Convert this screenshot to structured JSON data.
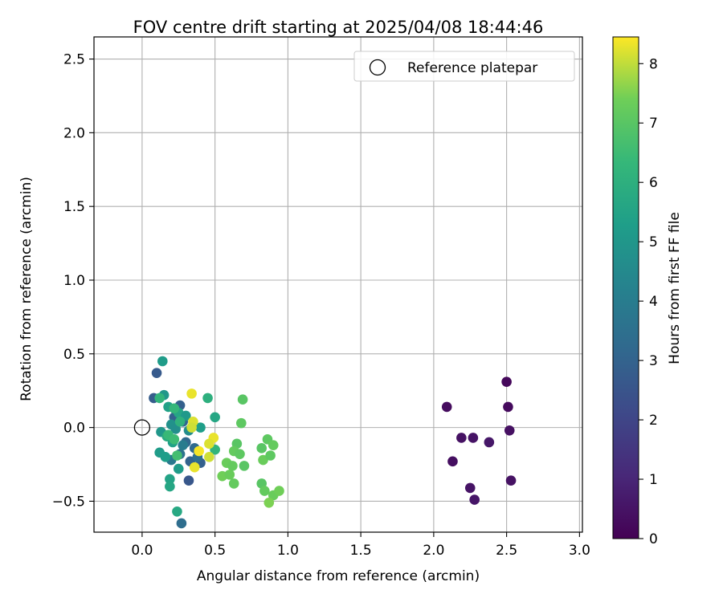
{
  "chart_data": {
    "type": "scatter",
    "title": "FOV centre drift starting at 2025/04/08 18:44:46",
    "xlabel": "Angular distance from reference (arcmin)",
    "ylabel": "Rotation from reference (arcmin)",
    "xlim": [
      -0.33,
      3.02
    ],
    "ylim": [
      -0.71,
      2.65
    ],
    "xticks": [
      {
        "value": 0.0,
        "label": "0.0"
      },
      {
        "value": 0.5,
        "label": "0.5"
      },
      {
        "value": 1.0,
        "label": "1.0"
      },
      {
        "value": 1.5,
        "label": "1.5"
      },
      {
        "value": 2.0,
        "label": "2.0"
      },
      {
        "value": 2.5,
        "label": "2.5"
      },
      {
        "value": 3.0,
        "label": "3.0"
      }
    ],
    "yticks": [
      {
        "value": -0.5,
        "label": "−0.5"
      },
      {
        "value": 0.0,
        "label": "0.0"
      },
      {
        "value": 0.5,
        "label": "0.5"
      },
      {
        "value": 1.0,
        "label": "1.0"
      },
      {
        "value": 1.5,
        "label": "1.5"
      },
      {
        "value": 2.0,
        "label": "2.0"
      },
      {
        "value": 2.5,
        "label": "2.5"
      }
    ],
    "grid": true,
    "legend": {
      "placement": "top-right",
      "entries": [
        "Reference platepar"
      ]
    },
    "reference_point": {
      "x": 0.0,
      "y": 0.0
    },
    "colorbar": {
      "label": "Hours from first FF file",
      "range": [
        0,
        8.45
      ],
      "colormap": "viridis",
      "ticks": [
        {
          "value": 0,
          "label": "0"
        },
        {
          "value": 1,
          "label": "1"
        },
        {
          "value": 2,
          "label": "2"
        },
        {
          "value": 3,
          "label": "3"
        },
        {
          "value": 4,
          "label": "4"
        },
        {
          "value": 5,
          "label": "5"
        },
        {
          "value": 6,
          "label": "6"
        },
        {
          "value": 7,
          "label": "7"
        },
        {
          "value": 8,
          "label": "8"
        }
      ]
    },
    "points": [
      {
        "x": 2.09,
        "y": 0.14,
        "t": 0.3
      },
      {
        "x": 2.13,
        "y": -0.23,
        "t": 0.35
      },
      {
        "x": 2.19,
        "y": -0.07,
        "t": 0.45
      },
      {
        "x": 2.25,
        "y": -0.41,
        "t": 0.5
      },
      {
        "x": 2.27,
        "y": -0.07,
        "t": 0.5
      },
      {
        "x": 2.28,
        "y": -0.49,
        "t": 0.55
      },
      {
        "x": 2.38,
        "y": -0.1,
        "t": 0.6
      },
      {
        "x": 2.5,
        "y": 0.31,
        "t": 0.2
      },
      {
        "x": 2.51,
        "y": 0.14,
        "t": 0.25
      },
      {
        "x": 2.52,
        "y": -0.02,
        "t": 0.4
      },
      {
        "x": 2.53,
        "y": -0.36,
        "t": 0.45
      },
      {
        "x": 0.1,
        "y": 0.37,
        "t": 2.7
      },
      {
        "x": 0.08,
        "y": 0.2,
        "t": 2.8
      },
      {
        "x": 0.26,
        "y": 0.15,
        "t": 2.9
      },
      {
        "x": 0.22,
        "y": 0.07,
        "t": 3.0
      },
      {
        "x": 0.28,
        "y": 0.04,
        "t": 3.1
      },
      {
        "x": 0.3,
        "y": -0.1,
        "t": 3.2
      },
      {
        "x": 0.33,
        "y": -0.23,
        "t": 3.0
      },
      {
        "x": 0.36,
        "y": -0.14,
        "t": 3.3
      },
      {
        "x": 0.4,
        "y": -0.24,
        "t": 2.9
      },
      {
        "x": 0.32,
        "y": -0.36,
        "t": 2.6
      },
      {
        "x": 0.27,
        "y": -0.65,
        "t": 3.4
      },
      {
        "x": 0.26,
        "y": -0.18,
        "t": 3.6
      },
      {
        "x": 0.2,
        "y": -0.22,
        "t": 3.8
      },
      {
        "x": 0.28,
        "y": -0.12,
        "t": 4.0
      },
      {
        "x": 0.38,
        "y": -0.2,
        "t": 3.5
      },
      {
        "x": 0.14,
        "y": 0.45,
        "t": 5.2
      },
      {
        "x": 0.15,
        "y": 0.22,
        "t": 5.0
      },
      {
        "x": 0.18,
        "y": 0.14,
        "t": 5.4
      },
      {
        "x": 0.25,
        "y": 0.1,
        "t": 5.6
      },
      {
        "x": 0.3,
        "y": 0.08,
        "t": 5.1
      },
      {
        "x": 0.2,
        "y": 0.02,
        "t": 4.8
      },
      {
        "x": 0.13,
        "y": -0.03,
        "t": 5.0
      },
      {
        "x": 0.12,
        "y": -0.17,
        "t": 5.2
      },
      {
        "x": 0.16,
        "y": -0.2,
        "t": 5.3
      },
      {
        "x": 0.21,
        "y": -0.1,
        "t": 5.4
      },
      {
        "x": 0.19,
        "y": -0.35,
        "t": 5.5
      },
      {
        "x": 0.19,
        "y": -0.4,
        "t": 5.6
      },
      {
        "x": 0.24,
        "y": -0.57,
        "t": 5.7
      },
      {
        "x": 0.25,
        "y": -0.28,
        "t": 5.2
      },
      {
        "x": 0.17,
        "y": -0.06,
        "t": 5.8
      },
      {
        "x": 0.23,
        "y": -0.01,
        "t": 4.7
      },
      {
        "x": 0.32,
        "y": -0.02,
        "t": 4.6
      },
      {
        "x": 0.4,
        "y": 0.0,
        "t": 5.3
      },
      {
        "x": 0.5,
        "y": 0.07,
        "t": 5.6
      },
      {
        "x": 0.45,
        "y": 0.2,
        "t": 6.0
      },
      {
        "x": 0.12,
        "y": 0.2,
        "t": 6.2
      },
      {
        "x": 0.22,
        "y": 0.13,
        "t": 6.3
      },
      {
        "x": 0.26,
        "y": 0.04,
        "t": 6.1
      },
      {
        "x": 0.18,
        "y": -0.05,
        "t": 6.4
      },
      {
        "x": 0.22,
        "y": -0.08,
        "t": 6.5
      },
      {
        "x": 0.5,
        "y": -0.15,
        "t": 6.2
      },
      {
        "x": 0.24,
        "y": -0.19,
        "t": 6.6
      },
      {
        "x": 0.69,
        "y": 0.19,
        "t": 7.0
      },
      {
        "x": 0.68,
        "y": 0.03,
        "t": 7.1
      },
      {
        "x": 0.65,
        "y": -0.11,
        "t": 7.0
      },
      {
        "x": 0.63,
        "y": -0.16,
        "t": 7.2
      },
      {
        "x": 0.67,
        "y": -0.18,
        "t": 7.1
      },
      {
        "x": 0.58,
        "y": -0.24,
        "t": 7.3
      },
      {
        "x": 0.62,
        "y": -0.26,
        "t": 7.2
      },
      {
        "x": 0.7,
        "y": -0.26,
        "t": 7.0
      },
      {
        "x": 0.55,
        "y": -0.33,
        "t": 7.4
      },
      {
        "x": 0.6,
        "y": -0.32,
        "t": 7.3
      },
      {
        "x": 0.63,
        "y": -0.38,
        "t": 7.2
      },
      {
        "x": 0.82,
        "y": -0.14,
        "t": 7.0
      },
      {
        "x": 0.86,
        "y": -0.08,
        "t": 7.1
      },
      {
        "x": 0.9,
        "y": -0.12,
        "t": 7.2
      },
      {
        "x": 0.83,
        "y": -0.22,
        "t": 7.3
      },
      {
        "x": 0.88,
        "y": -0.19,
        "t": 7.1
      },
      {
        "x": 0.82,
        "y": -0.38,
        "t": 7.0
      },
      {
        "x": 0.84,
        "y": -0.43,
        "t": 7.2
      },
      {
        "x": 0.9,
        "y": -0.46,
        "t": 7.3
      },
      {
        "x": 0.94,
        "y": -0.43,
        "t": 7.4
      },
      {
        "x": 0.87,
        "y": -0.51,
        "t": 7.5
      },
      {
        "x": 0.34,
        "y": 0.23,
        "t": 8.3
      },
      {
        "x": 0.35,
        "y": 0.04,
        "t": 8.2
      },
      {
        "x": 0.34,
        "y": 0.0,
        "t": 8.1
      },
      {
        "x": 0.49,
        "y": -0.07,
        "t": 8.3
      },
      {
        "x": 0.46,
        "y": -0.11,
        "t": 8.2
      },
      {
        "x": 0.39,
        "y": -0.16,
        "t": 8.4
      },
      {
        "x": 0.46,
        "y": -0.2,
        "t": 8.1
      },
      {
        "x": 0.36,
        "y": -0.27,
        "t": 8.3
      }
    ]
  }
}
